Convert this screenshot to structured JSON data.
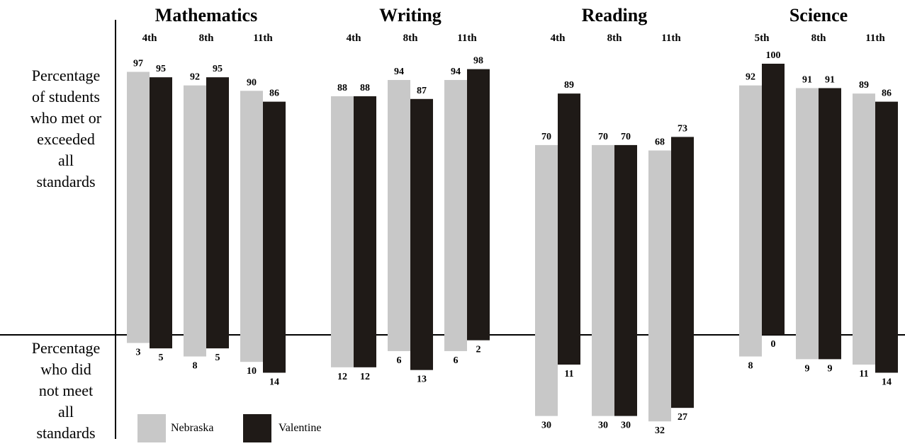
{
  "y_label_top": [
    "Percentage",
    "of students",
    "who met or",
    "exceeded",
    "all",
    "standards"
  ],
  "y_label_bottom": [
    "Percentage",
    "who did",
    "not meet",
    "all",
    "standards"
  ],
  "legend": {
    "nebraska": "Nebraska",
    "valentine": "Valentine"
  },
  "colors": {
    "nebraska": "#c8c8c8",
    "valentine": "#1f1a17",
    "axis": "#000000"
  },
  "chart_data": {
    "type": "bar",
    "series": [
      {
        "name": "Nebraska",
        "met_or_exceeded": [
          97,
          92,
          90,
          88,
          94,
          94,
          70,
          70,
          68,
          92,
          91,
          89
        ],
        "did_not_meet": [
          3,
          8,
          10,
          12,
          6,
          6,
          30,
          30,
          32,
          8,
          9,
          11
        ]
      },
      {
        "name": "Valentine",
        "met_or_exceeded": [
          95,
          95,
          86,
          88,
          87,
          98,
          89,
          70,
          73,
          100,
          91,
          86
        ],
        "did_not_meet": [
          5,
          5,
          14,
          12,
          13,
          2,
          11,
          30,
          27,
          0,
          9,
          14
        ]
      }
    ],
    "groups": [
      {
        "subject": "Mathematics",
        "grades": [
          "4th",
          "8th",
          "11th"
        ]
      },
      {
        "subject": "Writing",
        "grades": [
          "4th",
          "8th",
          "11th"
        ]
      },
      {
        "subject": "Reading",
        "grades": [
          "4th",
          "8th",
          "11th"
        ]
      },
      {
        "subject": "Science",
        "grades": [
          "5th",
          "8th",
          "11th"
        ]
      }
    ]
  }
}
